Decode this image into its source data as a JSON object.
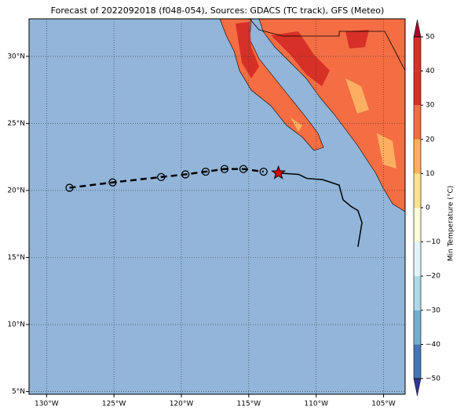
{
  "chart_data": {
    "type": "map",
    "title": "Forecast of 2022092018 (f048-054), Sources: GDACS (TC track), GFS (Meteo)",
    "xlim": [
      -131.3,
      -103.4
    ],
    "ylim": [
      4.8,
      32.8
    ],
    "xticks": [
      {
        "value": -130,
        "label": "130°W"
      },
      {
        "value": -125,
        "label": "125°W"
      },
      {
        "value": -120,
        "label": "120°W"
      },
      {
        "value": -115,
        "label": "115°W"
      },
      {
        "value": -110,
        "label": "110°W"
      },
      {
        "value": -105,
        "label": "105°W"
      }
    ],
    "yticks": [
      {
        "value": 5,
        "label": "5°N"
      },
      {
        "value": 10,
        "label": "10°N"
      },
      {
        "value": 15,
        "label": "15°N"
      },
      {
        "value": 20,
        "label": "20°N"
      },
      {
        "value": 25,
        "label": "25°N"
      },
      {
        "value": 30,
        "label": "30°N"
      }
    ],
    "grid": true,
    "forecast_track": {
      "lon": [
        -128.3,
        -125.1,
        -121.5,
        -119.7,
        -118.2,
        -116.8,
        -115.4,
        -113.9
      ],
      "lat": [
        20.2,
        20.6,
        21.0,
        21.2,
        21.4,
        21.6,
        21.6,
        21.4
      ]
    },
    "current_position": {
      "lon": -112.8,
      "lat": 21.3,
      "color": "#e00000"
    },
    "past_track": {
      "lon": [
        -112.8,
        -111.3,
        -110.7,
        -109.5,
        -108.3,
        -108.0,
        -107.4,
        -106.9,
        -106.6,
        -106.9
      ],
      "lat": [
        21.3,
        21.2,
        20.9,
        20.8,
        20.4,
        19.3,
        18.8,
        18.5,
        17.6,
        15.8
      ]
    },
    "colorbar": {
      "label": "Min Temperature (°C)",
      "ticks": [
        {
          "value": -50,
          "label": "−50"
        },
        {
          "value": -40,
          "label": "−40"
        },
        {
          "value": -30,
          "label": "−30"
        },
        {
          "value": -20,
          "label": "−20"
        },
        {
          "value": -10,
          "label": "−10"
        },
        0,
        10,
        20,
        30,
        40,
        50
      ],
      "colors": [
        "#313695",
        "#4575b4",
        "#74add1",
        "#abd9e9",
        "#e0f3f8",
        "#fffdd6",
        "#fee090",
        "#fdae61",
        "#f46d43",
        "#d73027",
        "#a50026"
      ]
    }
  }
}
